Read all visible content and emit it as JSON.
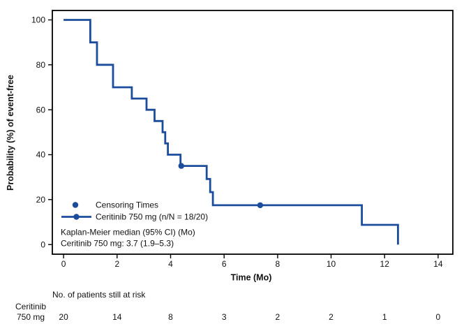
{
  "colors": {
    "line": "#1c4c9c",
    "frame": "#000000",
    "text": "#111111",
    "background": "#ffffff"
  },
  "chart_data": {
    "type": "line",
    "subtype": "kaplan-meier-step-curve",
    "title": "",
    "xlabel": "Time (Mo)",
    "ylabel": "Probability (%) of event-free",
    "xlim": [
      -0.42,
      14.55
    ],
    "ylim": [
      -4.3,
      104.2
    ],
    "xticks": [
      0,
      2,
      4,
      6,
      8,
      10,
      12,
      14
    ],
    "yticks": [
      0,
      20,
      40,
      60,
      80,
      100
    ],
    "grid": false,
    "legend_position": "inside lower-left",
    "series": [
      {
        "name": "Ceritinib 750 mg (n/N = 18/20)",
        "steps": [
          [
            0,
            100
          ],
          [
            1.0,
            90
          ],
          [
            1.25,
            80
          ],
          [
            1.85,
            70
          ],
          [
            2.55,
            65
          ],
          [
            3.1,
            60
          ],
          [
            3.4,
            55
          ],
          [
            3.7,
            50
          ],
          [
            3.8,
            45
          ],
          [
            3.9,
            40
          ],
          [
            4.37,
            35
          ],
          [
            5.35,
            29.17
          ],
          [
            5.48,
            23.33
          ],
          [
            5.58,
            17.5
          ],
          [
            11.15,
            8.75
          ],
          [
            12.5,
            0
          ]
        ],
        "censor_points": [
          [
            4.4,
            35
          ],
          [
            7.35,
            17.5
          ]
        ]
      }
    ],
    "legend": {
      "censor_label": "Censoring Times",
      "series_label": "Ceritinib 750 mg (n/N = 18/20)"
    },
    "annotations": [
      "Kaplan-Meier median (95% CI) (Mo)",
      "Ceritinib 750 mg: 3.7 (1.9–5.3)"
    ],
    "risk_table": {
      "title": "No. of patients still at risk",
      "row_label_lines": [
        "Ceritinib",
        "750 mg"
      ],
      "times": [
        0,
        2,
        4,
        6,
        8,
        10,
        12,
        14
      ],
      "counts": [
        20,
        14,
        8,
        3,
        2,
        2,
        1,
        0
      ]
    }
  }
}
